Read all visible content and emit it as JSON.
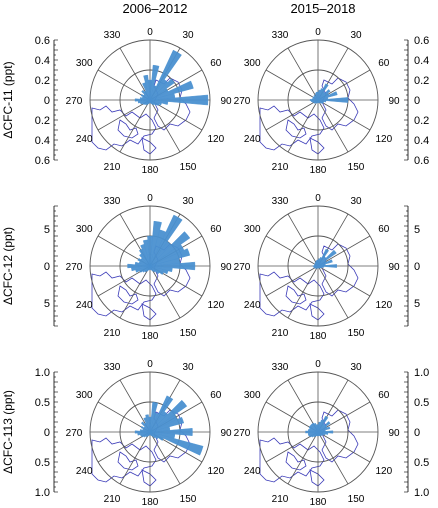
{
  "figure": {
    "column_titles": [
      "2006–2012",
      "2015–2018"
    ],
    "angle_labels": [
      "0",
      "30",
      "60",
      "90",
      "120",
      "150",
      "180",
      "210",
      "240",
      "270",
      "300",
      "330"
    ],
    "fill_color": "#4a90d0",
    "coast_color": "#3a3ab8",
    "grid_color": "#555555"
  },
  "chart_data": [
    {
      "type": "polar-area",
      "row": 0,
      "col": 0,
      "ylabel": "ΔCFC-11 (ppt)",
      "yticks": [
        "0.6",
        "0.4",
        "0.2",
        "0",
        "0.2",
        "0.4",
        "0.6"
      ],
      "rmax": 0.6,
      "directions_deg": [
        0,
        10,
        20,
        30,
        40,
        50,
        60,
        70,
        80,
        90,
        100,
        110,
        120,
        130,
        140,
        150,
        160,
        170,
        180,
        190,
        200,
        210,
        220,
        230,
        240,
        250,
        260,
        270,
        280,
        290,
        300,
        310,
        320,
        330,
        340,
        350
      ],
      "values": [
        0.2,
        0.35,
        0.15,
        0.55,
        0.25,
        0.3,
        0.2,
        0.45,
        0.25,
        0.58,
        0.18,
        0.12,
        0.1,
        0.08,
        0.06,
        0.05,
        0.04,
        0.03,
        0.03,
        0.03,
        0.04,
        0.05,
        0.06,
        0.07,
        0.08,
        0.1,
        0.12,
        0.15,
        0.1,
        0.08,
        0.1,
        0.08,
        0.12,
        0.1,
        0.18,
        0.25
      ]
    },
    {
      "type": "polar-area",
      "row": 0,
      "col": 1,
      "yticks": [
        "0.6",
        "0.4",
        "0.2",
        "0",
        "0.2",
        "0.4",
        "0.6"
      ],
      "rmax": 0.6,
      "directions_deg": [
        0,
        10,
        20,
        30,
        40,
        50,
        60,
        70,
        80,
        90,
        100,
        110,
        120,
        130,
        140,
        150,
        160,
        170,
        180,
        190,
        200,
        210,
        220,
        230,
        240,
        250,
        260,
        270,
        280,
        290,
        300,
        310,
        320,
        330,
        340,
        350
      ],
      "values": [
        0.08,
        0.1,
        0.12,
        0.18,
        0.1,
        0.15,
        0.12,
        0.2,
        0.1,
        0.3,
        0.08,
        0.06,
        0.06,
        0.05,
        0.04,
        0.03,
        0.03,
        0.03,
        0.03,
        0.03,
        0.03,
        0.04,
        0.04,
        0.05,
        0.05,
        0.06,
        0.07,
        0.08,
        0.06,
        0.05,
        0.06,
        0.05,
        0.06,
        0.05,
        0.07,
        0.08
      ]
    },
    {
      "type": "polar-area",
      "row": 1,
      "col": 0,
      "ylabel": "ΔCFC-12 (ppt)",
      "yticks": [
        "5",
        "0",
        "5"
      ],
      "rmax": 8,
      "directions_deg": [
        0,
        10,
        20,
        30,
        40,
        50,
        60,
        70,
        80,
        90,
        100,
        110,
        120,
        130,
        140,
        150,
        160,
        170,
        180,
        190,
        200,
        210,
        220,
        230,
        240,
        250,
        260,
        270,
        280,
        290,
        300,
        310,
        320,
        330,
        340,
        350
      ],
      "values": [
        4,
        6,
        5,
        7.5,
        4,
        6.5,
        5,
        5.5,
        4,
        6,
        3,
        2.5,
        2,
        1.5,
        1,
        0.8,
        0.6,
        0.5,
        0.5,
        0.5,
        0.6,
        0.8,
        1,
        1.2,
        1.5,
        2,
        2.5,
        3,
        2,
        1.5,
        1.8,
        1.5,
        2,
        2.5,
        3,
        3.5
      ]
    },
    {
      "type": "polar-area",
      "row": 1,
      "col": 1,
      "yticks": [
        "5",
        "0",
        "5"
      ],
      "rmax": 8,
      "directions_deg": [
        0,
        10,
        20,
        30,
        40,
        50,
        60,
        70,
        80,
        90,
        100,
        110,
        120,
        130,
        140,
        150,
        160,
        170,
        180,
        190,
        200,
        210,
        220,
        230,
        240,
        250,
        260,
        270,
        280,
        290,
        300,
        310,
        320,
        330,
        340,
        350
      ],
      "values": [
        0.8,
        1,
        1.2,
        2.5,
        1.5,
        3,
        1.2,
        2,
        1,
        2.5,
        0.8,
        0.6,
        0.5,
        0.4,
        0.4,
        0.3,
        0.3,
        0.3,
        0.3,
        0.3,
        0.3,
        0.4,
        0.4,
        0.5,
        0.5,
        0.6,
        0.6,
        0.7,
        0.5,
        0.5,
        0.5,
        0.5,
        0.6,
        0.6,
        0.7,
        0.8
      ]
    },
    {
      "type": "polar-area",
      "row": 2,
      "col": 0,
      "ylabel": "ΔCFC-113 (ppt)",
      "yticks": [
        "1.0",
        "0.5",
        "0",
        "0.5",
        "1.0"
      ],
      "rmax": 1.2,
      "directions_deg": [
        0,
        10,
        20,
        30,
        40,
        50,
        60,
        70,
        80,
        90,
        100,
        110,
        120,
        130,
        140,
        150,
        160,
        170,
        180,
        190,
        200,
        210,
        220,
        230,
        240,
        250,
        260,
        270,
        280,
        290,
        300,
        310,
        320,
        330,
        340,
        350
      ],
      "values": [
        0.3,
        0.6,
        0.4,
        0.8,
        0.5,
        0.9,
        0.6,
        0.7,
        0.4,
        0.85,
        0.5,
        1.1,
        0.3,
        0.2,
        0.15,
        0.1,
        0.08,
        0.06,
        0.06,
        0.06,
        0.08,
        0.1,
        0.12,
        0.15,
        0.18,
        0.2,
        0.25,
        0.3,
        0.2,
        0.15,
        0.2,
        0.15,
        0.25,
        0.2,
        0.3,
        0.35
      ]
    },
    {
      "type": "polar-area",
      "row": 2,
      "col": 1,
      "yticks": [
        "1.0",
        "0.5",
        "0",
        "0.5",
        "1.0"
      ],
      "rmax": 1.2,
      "directions_deg": [
        0,
        10,
        20,
        30,
        40,
        50,
        60,
        70,
        80,
        90,
        100,
        110,
        120,
        130,
        140,
        150,
        160,
        170,
        180,
        190,
        200,
        210,
        220,
        230,
        240,
        250,
        260,
        270,
        280,
        290,
        300,
        310,
        320,
        330,
        340,
        350
      ],
      "values": [
        0.15,
        0.2,
        0.25,
        0.35,
        0.2,
        0.3,
        0.2,
        0.25,
        0.15,
        0.3,
        0.2,
        0.15,
        0.12,
        0.1,
        0.1,
        0.08,
        0.08,
        0.08,
        0.08,
        0.08,
        0.08,
        0.1,
        0.12,
        0.15,
        0.18,
        0.2,
        0.2,
        0.25,
        0.2,
        0.18,
        0.2,
        0.2,
        0.2,
        0.2,
        0.18,
        0.15
      ]
    }
  ]
}
